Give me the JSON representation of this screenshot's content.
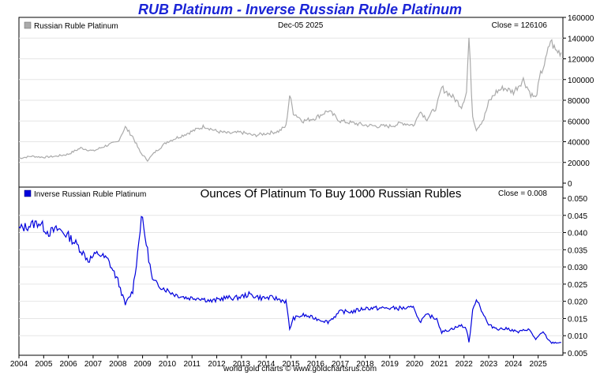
{
  "title": "RUB Platinum - Inverse Russian Ruble Platinum",
  "footer": "world gold charts © www.goldchartsrus.com",
  "colors": {
    "title": "#1a24d6",
    "top_series": "#aaaaaa",
    "bottom_series": "#0000dd"
  },
  "chart_data": [
    {
      "type": "line",
      "panel": "top",
      "legend": "Russian Ruble Platinum",
      "date_label": "Dec-05  2025",
      "close_label": "Close = 126106",
      "ylim": [
        0,
        160000
      ],
      "yticks": [
        "0",
        "20000",
        "40000",
        "60000",
        "80000",
        "100000",
        "120000",
        "140000",
        "160000"
      ],
      "x": [
        2004.0,
        2004.5,
        2005.0,
        2005.5,
        2006.0,
        2006.5,
        2007.0,
        2007.5,
        2008.0,
        2008.3,
        2008.6,
        2008.9,
        2009.2,
        2009.5,
        2010.0,
        2010.5,
        2011.0,
        2011.5,
        2012.0,
        2012.5,
        2013.0,
        2013.5,
        2014.0,
        2014.5,
        2014.8,
        2014.95,
        2015.1,
        2015.5,
        2016.0,
        2016.5,
        2017.0,
        2017.5,
        2018.0,
        2018.5,
        2019.0,
        2019.5,
        2020.0,
        2020.2,
        2020.5,
        2020.9,
        2021.1,
        2021.3,
        2021.6,
        2021.9,
        2022.1,
        2022.2,
        2022.35,
        2022.5,
        2022.8,
        2023.0,
        2023.3,
        2023.6,
        2024.0,
        2024.4,
        2024.7,
        2024.9,
        2025.1,
        2025.3,
        2025.5,
        2025.7,
        2025.93
      ],
      "values": [
        24000,
        26000,
        25000,
        26000,
        28000,
        34000,
        31000,
        36000,
        40000,
        54000,
        45000,
        30000,
        22000,
        30000,
        40000,
        45000,
        50000,
        55000,
        50000,
        48000,
        49000,
        46000,
        48000,
        50000,
        55000,
        85000,
        68000,
        60000,
        63000,
        70000,
        60000,
        58000,
        56000,
        55000,
        55000,
        58000,
        56000,
        70000,
        62000,
        74000,
        92000,
        88000,
        82000,
        74000,
        88000,
        140000,
        65000,
        52000,
        62000,
        78000,
        88000,
        92000,
        88000,
        100000,
        86000,
        82000,
        105000,
        118000,
        138000,
        128000,
        126106
      ]
    },
    {
      "type": "line",
      "panel": "bottom",
      "legend": "Inverse Russian Ruble Platinum",
      "subtitle": "Ounces Of Platinum To Buy 1000 Russian Rubles",
      "close_label": "Close = 0.008",
      "ylim": [
        0.005,
        0.05
      ],
      "yticks": [
        "0.005",
        "0.010",
        "0.015",
        "0.020",
        "0.025",
        "0.030",
        "0.035",
        "0.040",
        "0.045",
        "0.050"
      ],
      "xlabels": [
        "2004",
        "2005",
        "2006",
        "2007",
        "2008",
        "2009",
        "2010",
        "2011",
        "2012",
        "2013",
        "2014",
        "2015",
        "2016",
        "2017",
        "2018",
        "2019",
        "2020",
        "2021",
        "2022",
        "2023",
        "2024",
        "2025"
      ],
      "x": [
        2004.0,
        2004.4,
        2004.8,
        2005.2,
        2005.6,
        2006.0,
        2006.4,
        2006.8,
        2007.2,
        2007.6,
        2008.0,
        2008.3,
        2008.6,
        2008.8,
        2008.95,
        2009.1,
        2009.4,
        2009.8,
        2010.3,
        2010.8,
        2011.3,
        2011.8,
        2012.3,
        2012.8,
        2013.3,
        2013.8,
        2014.3,
        2014.8,
        2014.95,
        2015.1,
        2015.5,
        2016.0,
        2016.5,
        2017.0,
        2017.5,
        2018.0,
        2018.5,
        2019.0,
        2019.5,
        2020.0,
        2020.2,
        2020.5,
        2020.9,
        2021.1,
        2021.5,
        2021.9,
        2022.1,
        2022.2,
        2022.35,
        2022.5,
        2022.8,
        2023.0,
        2023.4,
        2023.8,
        2024.2,
        2024.6,
        2024.9,
        2025.2,
        2025.5,
        2025.93
      ],
      "values": [
        0.041,
        0.042,
        0.043,
        0.04,
        0.041,
        0.039,
        0.036,
        0.032,
        0.034,
        0.032,
        0.026,
        0.019,
        0.023,
        0.034,
        0.045,
        0.039,
        0.026,
        0.024,
        0.022,
        0.021,
        0.021,
        0.02,
        0.021,
        0.021,
        0.022,
        0.021,
        0.021,
        0.02,
        0.012,
        0.015,
        0.016,
        0.015,
        0.014,
        0.017,
        0.017,
        0.018,
        0.018,
        0.018,
        0.018,
        0.018,
        0.014,
        0.016,
        0.015,
        0.011,
        0.012,
        0.013,
        0.012,
        0.008,
        0.017,
        0.021,
        0.016,
        0.013,
        0.012,
        0.012,
        0.011,
        0.012,
        0.009,
        0.011,
        0.008,
        0.008
      ]
    }
  ]
}
